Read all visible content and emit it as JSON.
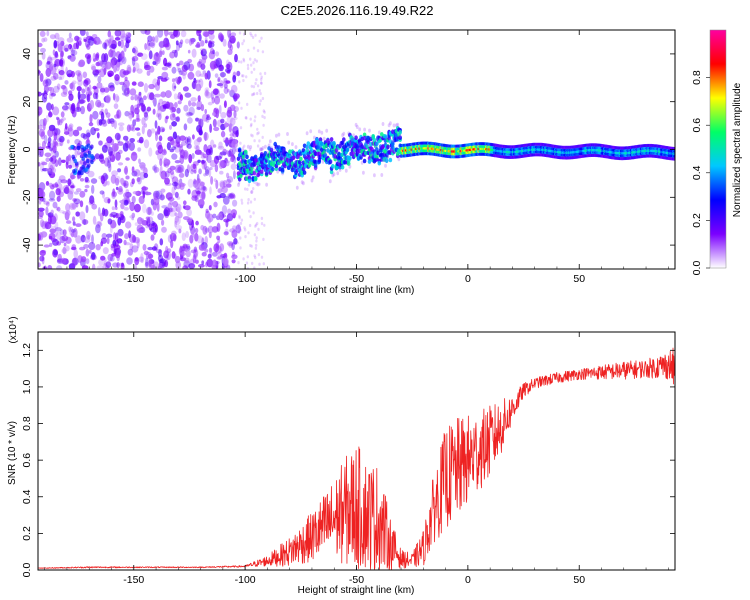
{
  "title": "C2E5.2026.116.19.49.R22",
  "chart_data": [
    {
      "type": "heatmap",
      "xlabel": "Height of straight line (km)",
      "ylabel": "Frequency (Hz)",
      "xlim": [
        -193,
        93
      ],
      "ylim": [
        -50,
        50
      ],
      "xticks": [
        -150,
        -100,
        -50,
        0,
        50
      ],
      "xtick_labels": [
        "-150",
        "-100",
        "-50",
        "0",
        "50"
      ],
      "yticks": [
        -40,
        -20,
        0,
        20,
        40
      ],
      "ytick_labels": [
        "-40",
        "-20",
        "0",
        "20",
        "40"
      ],
      "colorbar": {
        "label": "Normalized spectral amplitude",
        "range": [
          0,
          1
        ],
        "ticks": [
          0.0,
          0.2,
          0.4,
          0.6,
          0.8
        ],
        "tick_labels": [
          "0.0",
          "0.2",
          "0.4",
          "0.6",
          "0.8"
        ],
        "colors": [
          "#ffffff",
          "#7b00ff",
          "#0000ff",
          "#00c8ff",
          "#00ff66",
          "#ffff00",
          "#ff0000",
          "#ff00a0"
        ]
      },
      "regions": [
        {
          "x_range": [
            -193,
            -103
          ],
          "freq_range": [
            -50,
            50
          ],
          "amplitude": 0.1,
          "pattern": "scattered noise"
        },
        {
          "x_range": [
            -103,
            -30
          ],
          "freq_range": [
            -12,
            6
          ],
          "amplitude": 0.35,
          "pattern": "wavy ridge"
        },
        {
          "x_range": [
            -30,
            93
          ],
          "freq_range": [
            -3,
            3
          ],
          "amplitude": 0.5,
          "pattern": "narrow line near 0 Hz"
        }
      ]
    },
    {
      "type": "line",
      "xlabel": "Height of straight line (km)",
      "ylabel": "SNR (10 * v/v)",
      "y_scale_label": "(x10⁴)",
      "xlim": [
        -193,
        93
      ],
      "ylim": [
        0,
        1.3
      ],
      "xticks": [
        -150,
        -100,
        -50,
        0,
        50
      ],
      "xtick_labels": [
        "-150",
        "-100",
        "-50",
        "0",
        "50"
      ],
      "yticks": [
        0.0,
        0.2,
        0.4,
        0.6,
        0.8,
        1.0,
        1.2
      ],
      "ytick_labels": [
        "0.0",
        "0.2",
        "0.4",
        "0.6",
        "0.8",
        "1.0",
        "1.2"
      ],
      "color": "#ee2222",
      "series": [
        {
          "name": "SNR",
          "x": [
            -193,
            -170,
            -150,
            -120,
            -100,
            -90,
            -80,
            -70,
            -60,
            -55,
            -50,
            -45,
            -40,
            -35,
            -30,
            -25,
            -20,
            -15,
            -10,
            -5,
            0,
            5,
            10,
            15,
            20,
            25,
            30,
            40,
            50,
            60,
            70,
            80,
            90,
            93
          ],
          "y": [
            0.01,
            0.015,
            0.015,
            0.015,
            0.02,
            0.05,
            0.1,
            0.18,
            0.28,
            0.32,
            0.35,
            0.3,
            0.28,
            0.15,
            0.06,
            0.05,
            0.12,
            0.35,
            0.5,
            0.55,
            0.6,
            0.65,
            0.7,
            0.78,
            0.88,
            0.98,
            1.02,
            1.05,
            1.07,
            1.08,
            1.09,
            1.1,
            1.12,
            1.1
          ],
          "spread": [
            0.002,
            0.004,
            0.003,
            0.003,
            0.005,
            0.03,
            0.08,
            0.14,
            0.22,
            0.3,
            0.35,
            0.3,
            0.3,
            0.15,
            0.05,
            0.04,
            0.1,
            0.2,
            0.28,
            0.28,
            0.25,
            0.22,
            0.2,
            0.15,
            0.08,
            0.04,
            0.03,
            0.03,
            0.03,
            0.04,
            0.05,
            0.05,
            0.08,
            0.12
          ]
        }
      ]
    }
  ]
}
